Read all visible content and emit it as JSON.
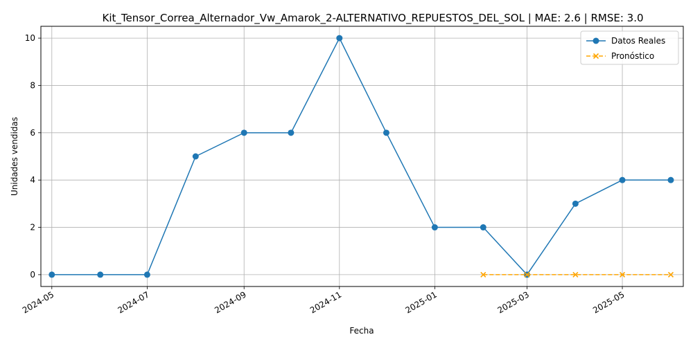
{
  "chart_data": {
    "type": "line",
    "title": "Kit_Tensor_Correa_Alternador_Vw_Amarok_2-ALTERNATIVO_REPUESTOS_DEL_SOL | MAE: 2.6 | RMSE: 3.0",
    "xlabel": "Fecha",
    "ylabel": "Unidades vendidas",
    "x_ticks": [
      "2024-05",
      "2024-07",
      "2024-09",
      "2024-11",
      "2025-01",
      "2025-03",
      "2025-05"
    ],
    "y_ticks": [
      0,
      2,
      4,
      6,
      8,
      10
    ],
    "xlim": [
      "2024-04-24",
      "2025-06-09"
    ],
    "ylim": [
      -0.5,
      10.5
    ],
    "grid": true,
    "legend_position": "top-right",
    "series": [
      {
        "name": "Datos Reales",
        "color": "#1f77b4",
        "marker": "circle",
        "linestyle": "solid",
        "x": [
          "2024-05-01",
          "2024-06-01",
          "2024-07-01",
          "2024-08-01",
          "2024-09-01",
          "2024-10-01",
          "2024-11-01",
          "2024-12-01",
          "2025-01-01",
          "2025-02-01",
          "2025-03-01",
          "2025-04-01",
          "2025-05-01",
          "2025-06-01"
        ],
        "values": [
          0,
          0,
          0,
          5,
          6,
          6,
          10,
          6,
          2,
          2,
          0,
          3,
          4,
          4
        ]
      },
      {
        "name": "Pronóstico",
        "color": "#ffa500",
        "marker": "x",
        "linestyle": "dashed",
        "x": [
          "2025-02-01",
          "2025-03-01",
          "2025-04-01",
          "2025-05-01",
          "2025-06-01"
        ],
        "values": [
          0,
          0,
          0,
          0,
          0
        ]
      }
    ]
  }
}
